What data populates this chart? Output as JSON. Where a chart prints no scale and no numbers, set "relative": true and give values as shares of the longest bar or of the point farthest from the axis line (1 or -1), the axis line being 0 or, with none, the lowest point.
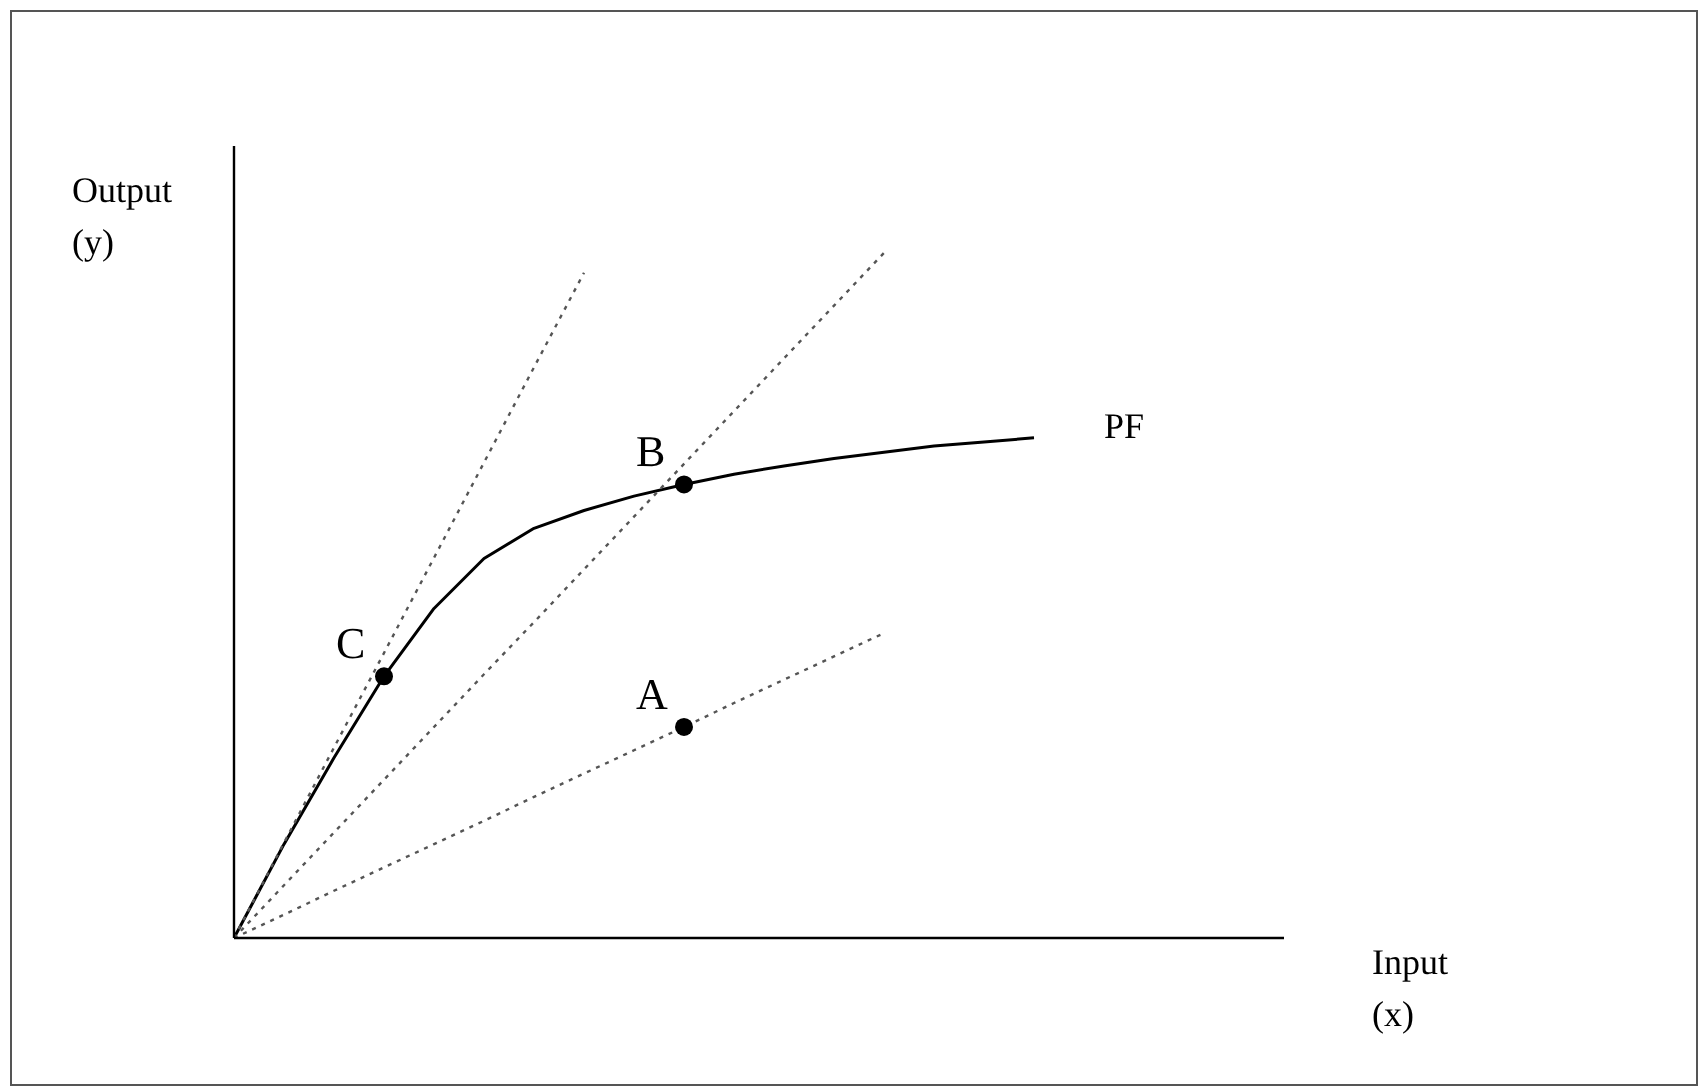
{
  "chart_data": {
    "type": "line",
    "relative": true,
    "xlabel": "Input\n(x)",
    "ylabel": "Output\n(y)",
    "grid": false,
    "legend": false,
    "categories": [
      null,
      null,
      null,
      null,
      null,
      null,
      null,
      null,
      null,
      null,
      null,
      null,
      null,
      null,
      null,
      null,
      null,
      null,
      null,
      null,
      null,
      null
    ],
    "series": [
      {
        "name": "PF",
        "color": "#000000",
        "line_style": "solid",
        "marker": "none",
        "values": [
          0,
          0.137,
          0.263,
          0.382,
          0.481,
          0.554,
          0.598,
          0.624,
          0.645,
          0.662,
          0.677,
          0.689,
          0.7,
          0.709,
          0.718,
          0.724,
          0.73,
          null,
          null,
          null,
          null,
          null
        ]
      },
      {
        "color": "#555555",
        "line_style": "dotted",
        "marker": "none",
        "values": [
          0,
          0.139,
          0.278,
          0.416,
          0.555,
          0.694,
          0.833,
          0.971,
          null,
          null,
          null,
          null,
          null,
          null,
          null,
          null,
          null,
          null,
          null,
          null,
          null,
          null
        ]
      },
      {
        "color": "#555555",
        "line_style": "dotted",
        "marker": "none",
        "values": [
          0,
          0.077,
          0.154,
          0.231,
          0.308,
          0.385,
          0.461,
          0.538,
          0.615,
          0.692,
          0.769,
          0.846,
          0.923,
          1,
          null,
          null,
          null,
          null,
          null,
          null,
          null,
          null
        ]
      },
      {
        "color": "#555555",
        "line_style": "dotted",
        "marker": "none",
        "values": [
          0,
          0.034,
          0.069,
          0.103,
          0.137,
          0.171,
          0.206,
          0.24,
          0.274,
          0.308,
          0.343,
          0.377,
          0.411,
          0.445,
          null,
          null,
          null,
          null,
          null,
          null,
          null,
          null
        ]
      },
      {
        "name": "C",
        "color": "#000000",
        "marker": "circle",
        "values": [
          null,
          null,
          null,
          0.382,
          null,
          null,
          null,
          null,
          null,
          null,
          null,
          null,
          null,
          null,
          null,
          null,
          null,
          null,
          null,
          null,
          null,
          null
        ]
      },
      {
        "name": "B",
        "color": "#000000",
        "marker": "circle",
        "values": [
          null,
          null,
          null,
          null,
          null,
          null,
          null,
          null,
          null,
          0.662,
          null,
          null,
          null,
          null,
          null,
          null,
          null,
          null,
          null,
          null,
          null,
          null
        ]
      },
      {
        "name": "A",
        "color": "#000000",
        "marker": "circle",
        "values": [
          null,
          null,
          null,
          null,
          null,
          null,
          null,
          null,
          null,
          0.308,
          null,
          null,
          null,
          null,
          null,
          null,
          null,
          null,
          null,
          null,
          null,
          null
        ]
      }
    ]
  }
}
